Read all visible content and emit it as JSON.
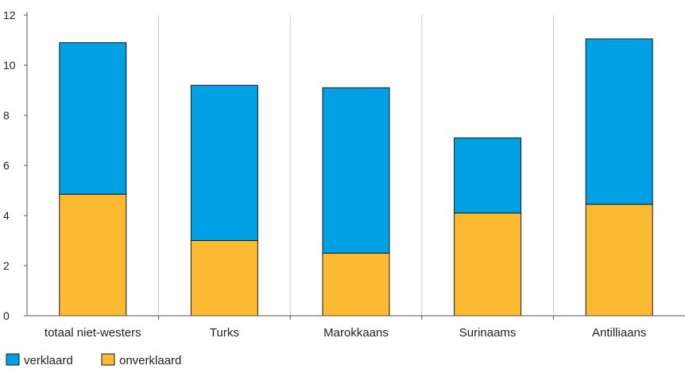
{
  "chart_data": {
    "type": "bar",
    "stacked": true,
    "categories": [
      "totaal niet-westers",
      "Turks",
      "Marokkaans",
      "Surinaams",
      "Antilliaans"
    ],
    "series": [
      {
        "name": "onverklaard",
        "color": "#FBBA31",
        "values": [
          4.85,
          3.0,
          2.5,
          4.1,
          4.45
        ]
      },
      {
        "name": "verklaard",
        "color": "#00A1E4",
        "values": [
          6.05,
          6.2,
          6.6,
          3.0,
          6.6
        ]
      }
    ],
    "legend_order": [
      "verklaard",
      "onverklaard"
    ],
    "ylim": [
      0,
      12
    ],
    "yticks": [
      0,
      2,
      4,
      6,
      8,
      10,
      12
    ],
    "title": "",
    "xlabel": "",
    "ylabel": "",
    "grid": "vertical separators between categories",
    "legend_position": "bottom-left"
  }
}
